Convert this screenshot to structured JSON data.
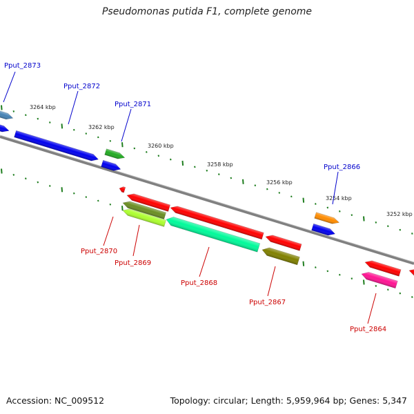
{
  "title": "Pseudomonas putida F1, complete genome",
  "footer": {
    "accession": "Accession: NC_009512",
    "summary": "Topology: circular; Length: 5,959,964 bp; Genes: 5,347"
  },
  "colors": {
    "forward_label": "#0000cc",
    "reverse_label": "#cc0000",
    "backbone": "#7a7a7a",
    "ticks": "#1e7d1e"
  },
  "ticks": [
    "3264 kbp",
    "3262 kbp",
    "3260 kbp",
    "3258 kbp",
    "3256 kbp",
    "3254 kbp",
    "3252 kbp"
  ],
  "genes": [
    {
      "id": "Pput_2873",
      "label": "Pput_2873",
      "strand": "forward",
      "color": "#4682b4"
    },
    {
      "id": "Pput_2873b",
      "label": "",
      "strand": "forward",
      "color": "#0000ee"
    },
    {
      "id": "Pput_2872",
      "label": "Pput_2872",
      "strand": "forward",
      "color": "#0000ee"
    },
    {
      "id": "Pput_2871",
      "label": "Pput_2871",
      "strand": "forward",
      "color": "#22aa22"
    },
    {
      "id": "Pput_2871b",
      "label": "",
      "strand": "forward",
      "color": "#0000ee"
    },
    {
      "id": "Pput_2866",
      "label": "Pput_2866",
      "strand": "forward",
      "color": "#ff8c00"
    },
    {
      "id": "Pput_2866b",
      "label": "",
      "strand": "forward",
      "color": "#0000ee"
    },
    {
      "id": "Pput_2870",
      "label": "Pput_2870",
      "strand": "reverse",
      "color": "#ff0000"
    },
    {
      "id": "Pput_2870b",
      "label": "",
      "strand": "reverse",
      "color": "#ff0000"
    },
    {
      "id": "Pput_2870c",
      "label": "",
      "strand": "reverse",
      "color": "#ff0000"
    },
    {
      "id": "Pput_2869",
      "label": "Pput_2869",
      "strand": "reverse",
      "color": "#6b8e23"
    },
    {
      "id": "Pput_2869b",
      "label": "",
      "strand": "reverse",
      "color": "#adff2f"
    },
    {
      "id": "Pput_2868",
      "label": "Pput_2868",
      "strand": "reverse",
      "color": "#00fa9a"
    },
    {
      "id": "Pput_2867",
      "label": "Pput_2867",
      "strand": "reverse",
      "color": "#808000"
    },
    {
      "id": "Pput_2867b",
      "label": "",
      "strand": "reverse",
      "color": "#ff0000"
    },
    {
      "id": "Pput_2864",
      "label": "Pput_2864",
      "strand": "reverse",
      "color": "#ff1493"
    },
    {
      "id": "Pput_2864b",
      "label": "",
      "strand": "reverse",
      "color": "#ff0000"
    },
    {
      "id": "Pput_2864c",
      "label": "",
      "strand": "reverse",
      "color": "#ff0000"
    }
  ]
}
